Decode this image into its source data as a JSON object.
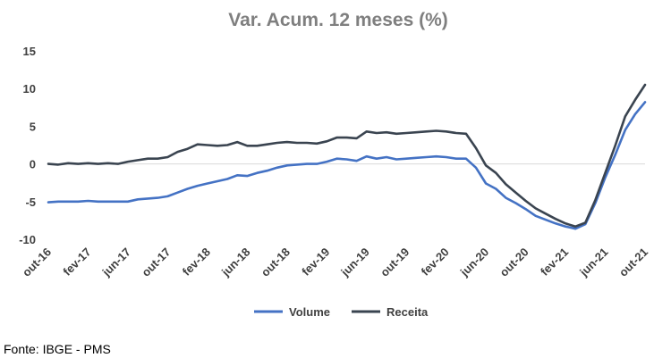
{
  "chart_data": {
    "type": "line",
    "title": "Var. Acum. 12 meses (%)",
    "xlabel": "",
    "ylabel": "",
    "ylim": [
      -10,
      15
    ],
    "yticks": [
      "15",
      "10",
      "5",
      "0",
      "-5",
      "-10"
    ],
    "x_tick_labels": [
      "out-16",
      "fev-17",
      "jun-17",
      "out-17",
      "fev-18",
      "jun-18",
      "out-18",
      "fev-19",
      "jun-19",
      "out-19",
      "fev-20",
      "jun-20",
      "out-20",
      "fev-21",
      "jun-21",
      "out-21"
    ],
    "x": [
      "out-16",
      "nov-16",
      "dez-16",
      "jan-17",
      "fev-17",
      "mar-17",
      "abr-17",
      "mai-17",
      "jun-17",
      "jul-17",
      "ago-17",
      "set-17",
      "out-17",
      "nov-17",
      "dez-17",
      "jan-18",
      "fev-18",
      "mar-18",
      "abr-18",
      "mai-18",
      "jun-18",
      "jul-18",
      "ago-18",
      "set-18",
      "out-18",
      "nov-18",
      "dez-18",
      "jan-19",
      "fev-19",
      "mar-19",
      "abr-19",
      "mai-19",
      "jun-19",
      "jul-19",
      "ago-19",
      "set-19",
      "out-19",
      "nov-19",
      "dez-19",
      "jan-20",
      "fev-20",
      "mar-20",
      "abr-20",
      "mai-20",
      "jun-20",
      "jul-20",
      "ago-20",
      "set-20",
      "out-20",
      "nov-20",
      "dez-20",
      "jan-21",
      "fev-21",
      "mar-21",
      "abr-21",
      "mai-21",
      "jun-21",
      "jul-21",
      "ago-21",
      "set-21",
      "out-21"
    ],
    "series": [
      {
        "name": "Volume",
        "color": "#4472c4",
        "values": [
          -5.1,
          -5.0,
          -5.0,
          -5.0,
          -4.9,
          -5.0,
          -5.0,
          -5.0,
          -5.0,
          -4.7,
          -4.6,
          -4.5,
          -4.3,
          -3.8,
          -3.3,
          -2.9,
          -2.6,
          -2.3,
          -2.0,
          -1.5,
          -1.6,
          -1.2,
          -0.9,
          -0.5,
          -0.2,
          -0.1,
          0.0,
          0.0,
          0.3,
          0.7,
          0.6,
          0.4,
          1.0,
          0.7,
          0.9,
          0.6,
          0.7,
          0.8,
          0.9,
          1.0,
          0.9,
          0.7,
          0.7,
          -0.5,
          -2.6,
          -3.3,
          -4.5,
          -5.2,
          -6.0,
          -6.9,
          -7.4,
          -7.9,
          -8.3,
          -8.6,
          -8.0,
          -5.2,
          -1.8,
          1.2,
          4.5,
          6.6,
          8.2
        ]
      },
      {
        "name": "Receita",
        "color": "#3a4450",
        "values": [
          0.0,
          -0.1,
          0.1,
          0.0,
          0.1,
          0.0,
          0.1,
          0.0,
          0.3,
          0.5,
          0.7,
          0.7,
          0.9,
          1.6,
          2.0,
          2.6,
          2.5,
          2.4,
          2.5,
          2.9,
          2.4,
          2.4,
          2.6,
          2.8,
          2.9,
          2.8,
          2.8,
          2.7,
          3.0,
          3.5,
          3.5,
          3.4,
          4.3,
          4.1,
          4.2,
          4.0,
          4.1,
          4.2,
          4.3,
          4.4,
          4.3,
          4.1,
          4.0,
          2.1,
          -0.2,
          -1.2,
          -2.7,
          -3.8,
          -4.9,
          -5.9,
          -6.6,
          -7.3,
          -7.9,
          -8.3,
          -7.8,
          -4.8,
          -1.2,
          2.4,
          6.3,
          8.5,
          10.5
        ]
      }
    ],
    "legend": {
      "placement": "bottom",
      "entries": [
        "Volume",
        "Receita"
      ]
    },
    "grid": false
  },
  "source_note": "Fonte: IBGE - PMS"
}
